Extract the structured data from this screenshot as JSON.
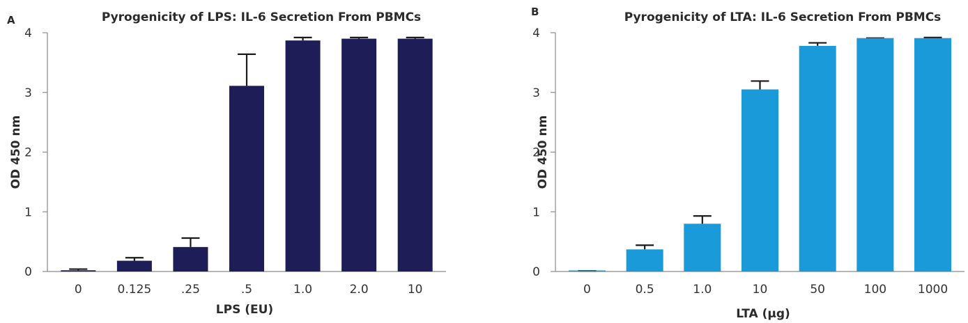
{
  "chart_data": [
    {
      "panel": "A",
      "type": "bar",
      "title": "Pyrogenicity of LPS: IL-6 Secretion From PBMCs",
      "xlabel": "LPS (EU)",
      "ylabel": "OD 450 nm",
      "categories": [
        "0",
        "0.125",
        ".25",
        ".5",
        "1.0",
        "2.0",
        "10"
      ],
      "values": [
        0.02,
        0.18,
        0.41,
        3.11,
        3.87,
        3.9,
        3.9
      ],
      "error": [
        0.02,
        0.05,
        0.15,
        0.53,
        0.05,
        0.02,
        0.02
      ],
      "ylim": [
        0,
        4
      ],
      "yticks": [
        "0",
        "1",
        "2",
        "3",
        "4"
      ],
      "color": "#1f1d57",
      "grid": false,
      "legend": "none"
    },
    {
      "panel": "B",
      "type": "bar",
      "title": "Pyrogenicity of LTA: IL-6 Secretion From PBMCs",
      "xlabel": "LTA (µg)",
      "ylabel": "OD 450 nm",
      "categories": [
        "0",
        "0.5",
        "1.0",
        "10",
        "50",
        "100",
        "1000"
      ],
      "values": [
        0.01,
        0.37,
        0.8,
        3.05,
        3.78,
        3.91,
        3.91
      ],
      "error": [
        0.0,
        0.07,
        0.13,
        0.14,
        0.05,
        0.0,
        0.01
      ],
      "ylim": [
        0,
        4
      ],
      "yticks": [
        "0",
        "1",
        "2",
        "3",
        "4"
      ],
      "color": "#1a9ad8",
      "grid": false,
      "legend": "none"
    }
  ]
}
